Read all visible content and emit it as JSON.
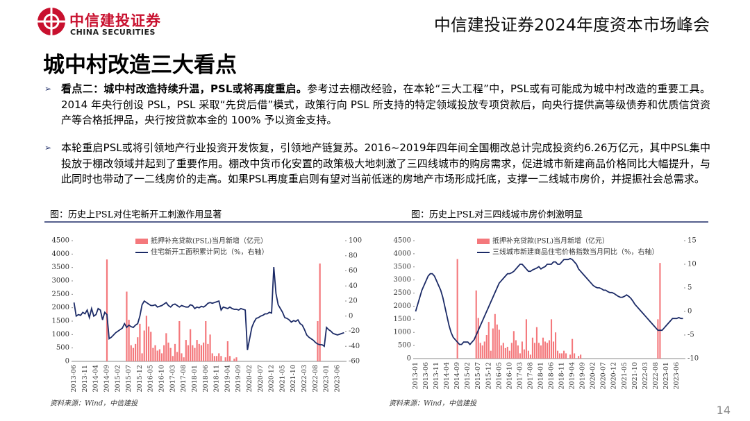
{
  "header": {
    "brand": "中信建投证券",
    "brand_en": "CHINA SECURITIES",
    "event": "中信建投证券2024年度资本市场峰会"
  },
  "title": "城中村改造三大看点",
  "bullets": [
    {
      "bold": "看点二：城中村改造持续升温，PSL或将再度重启。",
      "text": "参考过去棚改经验，在本轮“三大工程”中，PSL或有可能成为城中村改造的重要工具。2014 年央行创设 PSL，PSL 采取“先贷后借”模式，政策行向 PSL 所支持的特定领域投放专项贷款后，向央行提供高等级债券和优质信贷资产等合格抵押品，央行按贷款本金的 100% 予以资金支持。"
    },
    {
      "bold": "",
      "text": "本轮重启PSL或将引领地产行业投资开发恢复，引领地产链复苏。2016~2019年四年间全国棚改总计完成投资约6.26万亿元，其中PSL集中投放于棚改领域并起到了重要作用。棚改中货币化安置的政策极大地刺激了三四线城市的购房需求，促进城市新建商品价格同比大幅提升，与此同时也带动了一二线房价的走高。如果PSL再度重启则有望对当前低迷的房地产市场形成托底，支撑一二线城市房价，并提振社会总需求。"
    }
  ],
  "page_number": "14",
  "chart_data": [
    {
      "type": "bar_line",
      "title": "图：历史上PSL对住宅新开工刺激作用显著",
      "source": "资料来源：Wind，中信建投",
      "categories": [
        "2013-06",
        null,
        null,
        null,
        null,
        "2013-11",
        null,
        null,
        null,
        null,
        "2014-04",
        null,
        null,
        null,
        null,
        "2014-09",
        null,
        null,
        null,
        null,
        "2015-02",
        null,
        null,
        null,
        null,
        "2015-07",
        null,
        null,
        null,
        null,
        "2015-12",
        null,
        null,
        null,
        null,
        "2016-05",
        null,
        null,
        null,
        null,
        "2016-10",
        null,
        null,
        null,
        null,
        "2017-03",
        null,
        null,
        null,
        null,
        "2017-08",
        null,
        null,
        null,
        null,
        "2018-01",
        null,
        null,
        null,
        null,
        "2018-06",
        null,
        null,
        null,
        null,
        "2018-11",
        null,
        null,
        null,
        null,
        "2019-04",
        null,
        null,
        null,
        null,
        "2019-09",
        null,
        null,
        null,
        null,
        "2020-02",
        null,
        null,
        null,
        null,
        "2020-07",
        null,
        null,
        null,
        null,
        "2020-12",
        null,
        null,
        null,
        null,
        "2021-05",
        null,
        null,
        null,
        null,
        "2021-10",
        null,
        null,
        null,
        null,
        "2022-03",
        null,
        null,
        null,
        null,
        "2022-08",
        null,
        null,
        null,
        null,
        "2023-01",
        null,
        null,
        null,
        null,
        "2023-06",
        null,
        null,
        null
      ],
      "series": [
        {
          "name": "抵押补充贷款(PSL)当月新增（亿元）",
          "color": "#f4787c",
          "kind": "bar",
          "values": [
            0,
            0,
            0,
            0,
            0,
            0,
            0,
            0,
            0,
            0,
            0,
            0,
            0,
            0,
            0,
            3800,
            0,
            0,
            0,
            0,
            0,
            0,
            0,
            0,
            2600,
            1550,
            600,
            500,
            650,
            900,
            1400,
            300,
            1150,
            1700,
            1300,
            1100,
            500,
            600,
            400,
            450,
            300,
            600,
            1050,
            700,
            500,
            200,
            650,
            350,
            1500,
            300,
            150,
            800,
            600,
            1200,
            600,
            500,
            800,
            650,
            600,
            700,
            1500,
            650,
            1000,
            300,
            200,
            200,
            300,
            200,
            0,
            150,
            750,
            200,
            0,
            100,
            150,
            0,
            0,
            0,
            0,
            0,
            0,
            0,
            0,
            0,
            0,
            0,
            0,
            0,
            0,
            0,
            0,
            0,
            0,
            0,
            0,
            0,
            0,
            0,
            0,
            0,
            0,
            0,
            0,
            0,
            0,
            0,
            0,
            0,
            0,
            0,
            0,
            1500,
            3650,
            0,
            0,
            0,
            0,
            0,
            0,
            0,
            0,
            0,
            0,
            0
          ]
        },
        {
          "name": "住宅新开工面积累计同比（%，右轴）",
          "color": "#1b2a66",
          "kind": "line",
          "axis": "y2",
          "values": [
            18,
            0,
            2,
            1,
            5,
            3,
            8,
            -2,
            10,
            0,
            2,
            10,
            8,
            -5,
            5,
            2,
            -30,
            -28,
            -25,
            -22,
            -20,
            -18,
            -16,
            -10,
            -15,
            -12,
            -14,
            -15,
            -12,
            -10,
            0,
            15,
            20,
            18,
            16,
            14,
            14,
            15,
            12,
            13,
            14,
            16,
            18,
            14,
            12,
            15,
            16,
            14,
            12,
            14,
            13,
            12,
            12,
            15,
            14,
            10,
            12,
            11,
            13,
            12,
            14,
            17,
            18,
            17,
            18,
            19,
            20,
            8,
            12,
            11,
            10,
            12,
            10,
            9,
            9,
            8,
            10,
            9,
            8,
            -45,
            -30,
            -15,
            -8,
            -3,
            -2,
            0,
            1,
            3,
            3,
            5,
            4,
            65,
            30,
            15,
            10,
            5,
            -2,
            -3,
            -5,
            -8,
            -6,
            -7,
            -5,
            -10,
            -12,
            -18,
            -25,
            -28,
            -30,
            -32,
            -35,
            -37,
            -38,
            -38,
            -40,
            -15,
            -18,
            -20,
            -23,
            -24,
            -25,
            -24,
            -23,
            -22
          ]
        }
      ],
      "ylim": [
        0,
        4500
      ],
      "yticks": [
        0,
        500,
        1000,
        1500,
        2000,
        2500,
        3000,
        3500,
        4000,
        4500
      ],
      "y2lim": [
        -60,
        100
      ],
      "y2ticks": [
        -60,
        -40,
        -20,
        0,
        20,
        40,
        60,
        80,
        100
      ]
    },
    {
      "type": "bar_line",
      "title": "图：历史上PSL对三四线城市房价刺激明显",
      "source": "资料来源：Wind，中信建投",
      "categories": [
        "2013-01",
        null,
        null,
        null,
        null,
        "2013-06",
        null,
        null,
        null,
        null,
        "2013-11",
        null,
        null,
        null,
        null,
        "2014-04",
        null,
        null,
        null,
        null,
        "2014-09",
        null,
        null,
        null,
        null,
        "2015-02",
        null,
        null,
        null,
        null,
        "2015-07",
        null,
        null,
        null,
        null,
        "2015-12",
        null,
        null,
        null,
        null,
        "2016-05",
        null,
        null,
        null,
        null,
        "2016-10",
        null,
        null,
        null,
        null,
        "2017-03",
        null,
        null,
        null,
        null,
        "2017-08",
        null,
        null,
        null,
        null,
        "2018-01",
        null,
        null,
        null,
        null,
        "2018-06",
        null,
        null,
        null,
        null,
        "2018-11",
        null,
        null,
        null,
        null,
        "2019-04",
        null,
        null,
        null,
        null,
        "2019-09",
        null,
        null,
        null,
        null,
        "2020-02",
        null,
        null,
        null,
        null,
        "2020-07",
        null,
        null,
        null,
        null,
        "2020-12",
        null,
        null,
        null,
        null,
        "2021-05",
        null,
        null,
        null,
        null,
        "2021-10",
        null,
        null,
        null,
        null,
        "2022-03",
        null,
        null,
        null,
        null,
        "2022-08",
        null,
        null,
        null,
        null,
        "2023-01",
        null,
        null,
        null,
        null,
        "2023-06",
        null,
        null,
        null
      ],
      "series": [
        {
          "name": "抵押补充贷款(PSL)当月新增（亿元）",
          "color": "#f4787c",
          "kind": "bar",
          "values": [
            0,
            0,
            0,
            0,
            0,
            0,
            0,
            0,
            0,
            0,
            0,
            0,
            0,
            0,
            0,
            0,
            0,
            0,
            0,
            0,
            3800,
            0,
            0,
            0,
            0,
            0,
            0,
            0,
            0,
            2600,
            1550,
            600,
            500,
            650,
            900,
            1400,
            300,
            1150,
            1700,
            1300,
            1100,
            500,
            600,
            400,
            450,
            300,
            600,
            1050,
            700,
            500,
            200,
            650,
            350,
            1500,
            300,
            150,
            800,
            600,
            1200,
            600,
            500,
            800,
            650,
            600,
            700,
            1500,
            650,
            1000,
            300,
            200,
            200,
            300,
            200,
            0,
            150,
            750,
            200,
            0,
            100,
            150,
            0,
            0,
            0,
            0,
            0,
            0,
            0,
            0,
            0,
            0,
            0,
            0,
            0,
            0,
            0,
            0,
            0,
            0,
            0,
            0,
            0,
            0,
            0,
            0,
            0,
            0,
            0,
            0,
            0,
            0,
            0,
            0,
            0,
            0,
            0,
            0,
            1500,
            3650,
            0,
            0,
            0,
            0,
            0,
            0,
            0,
            0,
            0,
            0,
            0
          ]
        },
        {
          "name": "三线城市新建商品住宅价格指数当月同比（%，右轴）",
          "color": "#1b2a66",
          "kind": "line",
          "axis": "y2",
          "values": [
            0,
            1.5,
            3,
            4.5,
            5.5,
            6.5,
            7.5,
            8,
            8,
            7.5,
            6.5,
            5.5,
            4.5,
            3,
            1,
            -1,
            -3,
            -4.5,
            -5.5,
            -6,
            -6.5,
            -7,
            -7,
            -6.5,
            -6.5,
            -6.5,
            -7,
            -6.5,
            -6,
            -5,
            -4,
            -3,
            -2,
            -1,
            0,
            1,
            2,
            3,
            4,
            5,
            6,
            6.5,
            7,
            7.5,
            8,
            8,
            8.2,
            8.5,
            9,
            9.5,
            10,
            10,
            9.5,
            9,
            8.5,
            8.5,
            8.8,
            9,
            9.2,
            9.5,
            9,
            9.3,
            9.5,
            10,
            10,
            10,
            10.5,
            10.5,
            10,
            10,
            10.5,
            11,
            11,
            11,
            11.2,
            11,
            10.5,
            10,
            9,
            8.5,
            8,
            7.5,
            7,
            6.5,
            6,
            5.5,
            5.2,
            5,
            5,
            4.8,
            4.5,
            4.5,
            4.2,
            4,
            4,
            3.8,
            3.5,
            3.2,
            3,
            3,
            3.2,
            3.5,
            3.2,
            2.8,
            2.2,
            1.5,
            1,
            0.5,
            0,
            -0.5,
            -1,
            -1.5,
            -2,
            -2.5,
            -3,
            -3.5,
            -4,
            -4,
            -4,
            -3.5,
            -3,
            -2.5,
            -2,
            -1.5,
            -1.5,
            -1.5,
            -1.3,
            -1.5,
            -1.5
          ]
        }
      ],
      "ylim": [
        0,
        4500
      ],
      "yticks": [
        0,
        500,
        1000,
        1500,
        2000,
        2500,
        3000,
        3500,
        4000,
        4500
      ],
      "y2lim": [
        -10,
        15
      ],
      "y2ticks": [
        -10,
        -5,
        0,
        5,
        10,
        15
      ]
    }
  ]
}
